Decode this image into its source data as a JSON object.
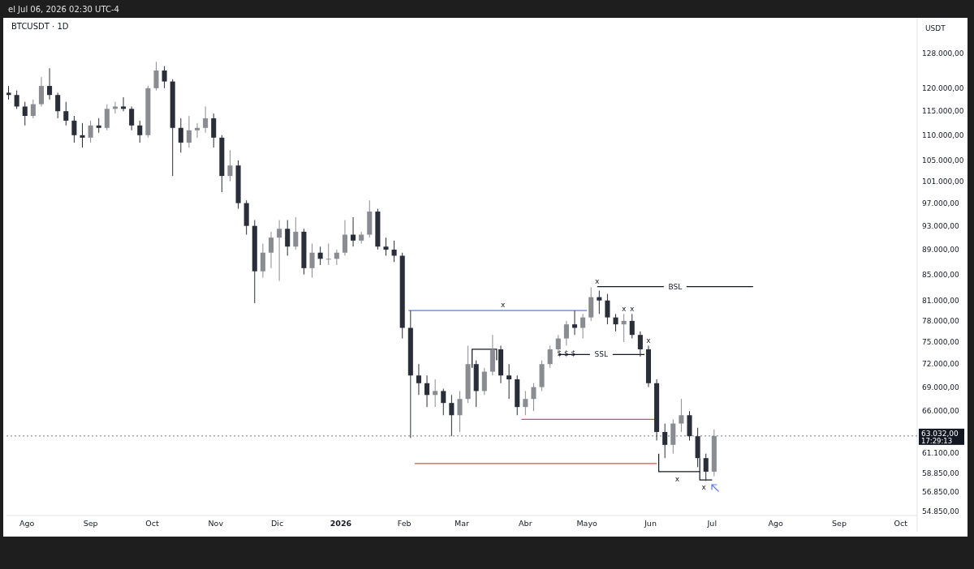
{
  "chart_data": {
    "type": "candlestick",
    "title": "BTCUSDT · 1D",
    "subtitle": "el Jul 06, 2026 02:30 UTC-4",
    "ylabel": "USDT",
    "colors": [
      "#2a2e39",
      "#2a2e39",
      "#2a2e39",
      "#8a8c92",
      "#8a8c92",
      "#2a2e39",
      "#2a2e39",
      "#2a2e39",
      "#2a2e39",
      "#2a2e39",
      "#8a8c92",
      "#2a2e39",
      "#8a8c92",
      "#8a8c92",
      "#2a2e39",
      "#2a2e39",
      "#2a2e39",
      "#8a8c92",
      "#8a8c92",
      "#2a2e39",
      "#2a2e39",
      "#2a2e39",
      "#8a8c92",
      "#8a8c92",
      "#8a8c92",
      "#2a2e39",
      "#2a2e39",
      "#8a8c92",
      "#2a2e39",
      "#2a2e39",
      "#2a2e39",
      "#8a8c92",
      "#8a8c92",
      "#8a8c92",
      "#2a2e39",
      "#8a8c92",
      "#2a2e39",
      "#8a8c92",
      "#2a2e39",
      "#8a8c92",
      "#8a8c92",
      "#8a8c92",
      "#2a2e39",
      "#8a8c92",
      "#8a8c92",
      "#2a2e39",
      "#2a2e39",
      "#2a2e39",
      "#2a2e39",
      "#2a2e39",
      "#2a2e39",
      "#2a2e39",
      "#8a8c92",
      "#2a2e39",
      "#2a2e39",
      "#8a8c92",
      "#8a8c92",
      "#2a2e39",
      "#8a8c92",
      "#8a8c92",
      "#2a2e39",
      "#2a2e39",
      "#2a2e39",
      "#8a8c92",
      "#8a8c92",
      "#8a8c92",
      "#8a8c92",
      "#8a8c92",
      "#8a8c92",
      "#2a2e39",
      "#8a8c92",
      "#8a8c92",
      "#2a2e39",
      "#2a2e39",
      "#2a2e39",
      "#8a8c92",
      "#2a2e39",
      "#2a2e39",
      "#2a2e39",
      "#2a2e39",
      "#2a2e39",
      "#8a8c92",
      "#8a8c92",
      "#2a2e39",
      "#2a2e39",
      "#2a2e39",
      "#8a8c92"
    ],
    "log": true,
    "grid": false,
    "xlim": [
      "2025-07-22",
      "2026-10-09"
    ],
    "xticks": [
      {
        "value": "2025-08-01",
        "label": "Ago"
      },
      {
        "value": "2025-09-01",
        "label": "Sep"
      },
      {
        "value": "2025-10-01",
        "label": "Oct"
      },
      {
        "value": "2025-11-01",
        "label": "Nov"
      },
      {
        "value": "2025-12-01",
        "label": "Dic"
      },
      {
        "value": "2026-01-01",
        "label": "2026"
      },
      {
        "value": "2026-02-01",
        "label": "Feb"
      },
      {
        "value": "2026-03-01",
        "label": "Mar"
      },
      {
        "value": "2026-04-01",
        "label": "Abr"
      },
      {
        "value": "2026-05-01",
        "label": "Mayo"
      },
      {
        "value": "2026-06-01",
        "label": "Jun"
      },
      {
        "value": "2026-07-01",
        "label": "Jul"
      },
      {
        "value": "2026-08-01",
        "label": "Ago"
      },
      {
        "value": "2026-09-01",
        "label": "Sep"
      },
      {
        "value": "2026-10-01",
        "label": "Oct"
      }
    ],
    "ylim": [
      54400,
      136700
    ],
    "yticks": [
      {
        "value": 54850,
        "label": "54.850,00"
      },
      {
        "value": 56850,
        "label": "56.850,00"
      },
      {
        "value": 58850,
        "label": "58.850,00"
      },
      {
        "value": 61100,
        "label": "61.100,00"
      },
      {
        "value": 66000,
        "label": "66.000,00"
      },
      {
        "value": 69000,
        "label": "69.000,00"
      },
      {
        "value": 72000,
        "label": "72.000,00"
      },
      {
        "value": 75000,
        "label": "75.000,00"
      },
      {
        "value": 78000,
        "label": "78.000,00"
      },
      {
        "value": 81000,
        "label": "81.000,00"
      },
      {
        "value": 85000,
        "label": "85.000,00"
      },
      {
        "value": 89000,
        "label": "89.000,00"
      },
      {
        "value": 93000,
        "label": "93.000,00"
      },
      {
        "value": 97000,
        "label": "97.000,00"
      },
      {
        "value": 101000,
        "label": "101.000,00"
      },
      {
        "value": 105000,
        "label": "105.000,00"
      },
      {
        "value": 110000,
        "label": "110.000,00"
      },
      {
        "value": 115000,
        "label": "115.000,00"
      },
      {
        "value": 120000,
        "label": "120.000,00"
      },
      {
        "value": 128000,
        "label": "128.000,00"
      }
    ],
    "x": [
      "2025-07-23",
      "2025-07-27",
      "2025-07-31",
      "2025-08-04",
      "2025-08-08",
      "2025-08-12",
      "2025-08-16",
      "2025-08-20",
      "2025-08-24",
      "2025-08-28",
      "2025-09-01",
      "2025-09-05",
      "2025-09-09",
      "2025-09-13",
      "2025-09-17",
      "2025-09-21",
      "2025-09-25",
      "2025-09-29",
      "2025-10-03",
      "2025-10-07",
      "2025-10-11",
      "2025-10-15",
      "2025-10-19",
      "2025-10-23",
      "2025-10-27",
      "2025-10-31",
      "2025-11-04",
      "2025-11-08",
      "2025-11-12",
      "2025-11-16",
      "2025-11-20",
      "2025-11-24",
      "2025-11-28",
      "2025-12-02",
      "2025-12-06",
      "2025-12-10",
      "2025-12-14",
      "2025-12-18",
      "2025-12-22",
      "2025-12-26",
      "2025-12-30",
      "2026-01-03",
      "2026-01-07",
      "2026-01-11",
      "2026-01-15",
      "2026-01-19",
      "2026-01-23",
      "2026-01-27",
      "2026-01-31",
      "2026-02-04",
      "2026-02-08",
      "2026-02-12",
      "2026-02-16",
      "2026-02-20",
      "2026-02-24",
      "2026-02-28",
      "2026-03-04",
      "2026-03-08",
      "2026-03-12",
      "2026-03-16",
      "2026-03-20",
      "2026-03-24",
      "2026-03-28",
      "2026-04-01",
      "2026-04-05",
      "2026-04-09",
      "2026-04-13",
      "2026-04-17",
      "2026-04-21",
      "2026-04-25",
      "2026-04-29",
      "2026-05-03",
      "2026-05-07",
      "2026-05-11",
      "2026-05-15",
      "2026-05-19",
      "2026-05-23",
      "2026-05-27",
      "2026-05-31",
      "2026-06-04",
      "2026-06-08",
      "2026-06-12",
      "2026-06-16",
      "2026-06-20",
      "2026-06-24",
      "2026-06-28",
      "2026-07-02"
    ],
    "ohlc": [
      [
        119000,
        120500,
        117500,
        118500
      ],
      [
        118500,
        119500,
        115500,
        116000
      ],
      [
        116000,
        117000,
        112000,
        114000
      ],
      [
        114000,
        117500,
        113500,
        116500
      ],
      [
        116500,
        122500,
        116000,
        120500
      ],
      [
        120500,
        124500,
        117500,
        118500
      ],
      [
        118500,
        119000,
        113500,
        115000
      ],
      [
        115000,
        117000,
        112000,
        113000
      ],
      [
        113000,
        114000,
        108500,
        110000
      ],
      [
        110000,
        112500,
        107500,
        109500
      ],
      [
        109500,
        113000,
        108500,
        112000
      ],
      [
        112000,
        113500,
        110500,
        111500
      ],
      [
        111500,
        116500,
        111000,
        115500
      ],
      [
        115500,
        117000,
        114500,
        116000
      ],
      [
        116000,
        118000,
        115000,
        115500
      ],
      [
        115500,
        116000,
        111000,
        112000
      ],
      [
        112000,
        113000,
        108500,
        110000
      ],
      [
        110000,
        120500,
        109500,
        120000
      ],
      [
        120000,
        126000,
        119500,
        124000
      ],
      [
        124000,
        125000,
        120000,
        121500
      ],
      [
        121500,
        122000,
        102000,
        111500
      ],
      [
        111500,
        113500,
        106500,
        108500
      ],
      [
        108500,
        114000,
        107500,
        111000
      ],
      [
        111000,
        112500,
        109500,
        111500
      ],
      [
        111500,
        116000,
        110500,
        113500
      ],
      [
        113500,
        114500,
        107500,
        109500
      ],
      [
        109500,
        110000,
        99000,
        102000
      ],
      [
        102000,
        107000,
        101000,
        104000
      ],
      [
        104000,
        105000,
        96000,
        97000
      ],
      [
        97000,
        97500,
        91500,
        93000
      ],
      [
        93000,
        94000,
        80600,
        85500
      ],
      [
        85500,
        90000,
        84500,
        88500
      ],
      [
        88500,
        92000,
        86000,
        91000
      ],
      [
        91000,
        94000,
        84000,
        92500
      ],
      [
        92500,
        94000,
        88000,
        89500
      ],
      [
        89500,
        94500,
        89000,
        92000
      ],
      [
        92000,
        92500,
        85000,
        86000
      ],
      [
        86000,
        90000,
        84500,
        88500
      ],
      [
        88500,
        89500,
        86500,
        87500
      ],
      [
        87500,
        90000,
        86500,
        87500
      ],
      [
        87500,
        89000,
        86500,
        88500
      ],
      [
        88500,
        94000,
        88000,
        91500
      ],
      [
        91500,
        94500,
        89500,
        90500
      ],
      [
        90500,
        92000,
        90000,
        91500
      ],
      [
        91500,
        97500,
        91000,
        95500
      ],
      [
        95500,
        96000,
        89000,
        89500
      ],
      [
        89500,
        91000,
        88000,
        89000
      ],
      [
        89000,
        90500,
        87000,
        88000
      ],
      [
        88000,
        88500,
        75500,
        77000
      ],
      [
        77000,
        79500,
        62800,
        70500
      ],
      [
        70500,
        72000,
        68000,
        69500
      ],
      [
        69500,
        70500,
        66500,
        68000
      ],
      [
        68000,
        70000,
        66500,
        68500
      ],
      [
        68500,
        68800,
        65500,
        67000
      ],
      [
        67000,
        68000,
        63000,
        65500
      ],
      [
        65500,
        68500,
        63500,
        67500
      ],
      [
        67500,
        74500,
        67000,
        72000
      ],
      [
        72000,
        72500,
        66500,
        68500
      ],
      [
        68500,
        71500,
        68000,
        71000
      ],
      [
        71000,
        76000,
        70500,
        74000
      ],
      [
        74000,
        74500,
        69500,
        70500
      ],
      [
        70500,
        72000,
        67500,
        70000
      ],
      [
        70000,
        70500,
        65500,
        66500
      ],
      [
        66500,
        68500,
        65500,
        67500
      ],
      [
        67500,
        69500,
        66000,
        69000
      ],
      [
        69000,
        72500,
        68500,
        72000
      ],
      [
        72000,
        74500,
        71500,
        74000
      ],
      [
        74000,
        76000,
        73500,
        75500
      ],
      [
        75500,
        78000,
        74500,
        77500
      ],
      [
        77500,
        79500,
        76000,
        77000
      ],
      [
        77000,
        79000,
        75500,
        78500
      ],
      [
        78500,
        83000,
        78000,
        81500
      ],
      [
        81500,
        82500,
        79000,
        81000
      ],
      [
        81000,
        82000,
        77500,
        78500
      ],
      [
        78500,
        79000,
        76500,
        77500
      ],
      [
        77500,
        79000,
        75000,
        78000
      ],
      [
        78000,
        79000,
        75500,
        76000
      ],
      [
        76000,
        76500,
        73000,
        74000
      ],
      [
        74000,
        74500,
        69000,
        69500
      ],
      [
        69500,
        70000,
        62500,
        63500
      ],
      [
        63500,
        64500,
        60500,
        62000
      ],
      [
        62000,
        65000,
        61000,
        64500
      ],
      [
        64500,
        67500,
        63500,
        65500
      ],
      [
        65500,
        66000,
        62500,
        63000
      ],
      [
        63000,
        64000,
        59500,
        60500
      ],
      [
        60500,
        61000,
        58000,
        59000
      ],
      [
        59000,
        63800,
        58500,
        63032
      ]
    ],
    "series": [
      {
        "type": "line",
        "color": "#5b7be8",
        "x": [
          "2026-02-03",
          "2026-05-01"
        ],
        "values": [
          79500,
          79500
        ]
      },
      {
        "type": "line",
        "name": "BSL",
        "color": "#131722",
        "x": [
          "2026-05-06",
          "2026-07-21"
        ],
        "values": [
          83100,
          83100
        ]
      },
      {
        "type": "line",
        "name": "SSL",
        "color": "#131722",
        "x": [
          "2026-04-17",
          "2026-05-29"
        ],
        "values": [
          73300,
          73300
        ]
      },
      {
        "type": "line",
        "color": "#e04c4c",
        "x": [
          "2026-03-30",
          "2026-06-03"
        ],
        "values": [
          65000,
          65000
        ]
      },
      {
        "type": "line",
        "color": "#e04c4c",
        "x": [
          "2026-02-06",
          "2026-06-04"
        ],
        "values": [
          59900,
          59900
        ]
      },
      {
        "type": "line",
        "color": "#131722",
        "x": [
          "2026-03-06",
          "2026-03-06",
          "2026-03-18",
          "2026-03-18"
        ],
        "values": [
          71500,
          74000,
          74000,
          72500
        ]
      },
      {
        "type": "line",
        "color": "#131722",
        "x": [
          "2026-06-05",
          "2026-06-05",
          "2026-06-25",
          "2026-06-25"
        ],
        "values": [
          61000,
          59000,
          59000,
          60500
        ]
      },
      {
        "type": "line",
        "color": "#131722",
        "x": [
          "2026-06-25",
          "2026-06-25",
          "2026-07-01"
        ],
        "values": [
          59000,
          58100,
          58100
        ]
      }
    ],
    "ref_lines": [
      {
        "axis": "y",
        "value": 63032,
        "label": "63.032,00",
        "line_style": "dotted",
        "color": "#787b86"
      }
    ],
    "annotations": [
      "17:29:13",
      {
        "text": "x",
        "x": "2026-03-21",
        "y": 79500
      },
      {
        "text": "x",
        "x": "2026-05-06",
        "y": 83100
      },
      {
        "text": "$ $ $",
        "x": "2026-04-21",
        "y": 74500
      },
      {
        "text": "x",
        "x": "2026-05-19",
        "y": 79000
      },
      {
        "text": "x",
        "x": "2026-05-23",
        "y": 79000
      },
      {
        "text": "x",
        "x": "2026-05-31",
        "y": 74500
      },
      {
        "text": "x",
        "x": "2026-06-14",
        "y": 59000
      },
      {
        "text": "x",
        "x": "2026-06-27",
        "y": 58100
      }
    ]
  }
}
